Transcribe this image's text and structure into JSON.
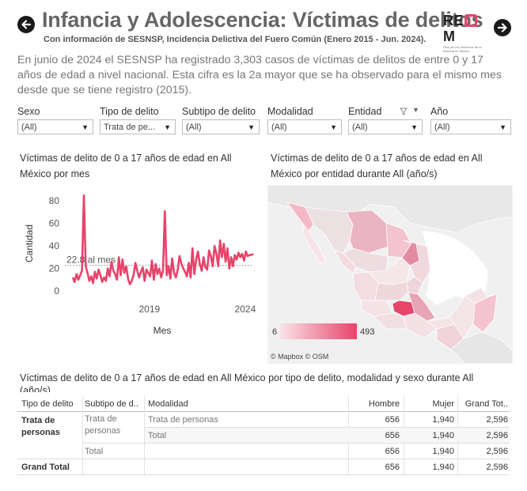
{
  "header": {
    "title": "Infancia y Adolescencia: Víctimas de delitos",
    "subtitle": "Con información de SESNSP, Incidencia Delictiva del Fuero Común (Enero 2015 - Jun. 2024).",
    "logo_main_a": "RE",
    "logo_main_b": "I",
    "logo_main_c": "M",
    "logo_sub": "Red por los Derechos de la Infancia en México",
    "accent": "#e8436a"
  },
  "intro": "En junio de 2024 el SESNSP ha registrado 3,303 casos de víctimas de delitos de entre 0 y 17 años de edad a nivel nacional. Esta cifra es la 2a mayor que se ha observado para el mismo mes desde que se tiene registro (2015).",
  "filters": [
    {
      "label": "Sexo",
      "value": "(All)"
    },
    {
      "label": "Tipo de delito",
      "value": "Trata de pe..."
    },
    {
      "label": "Subtipo de delito",
      "value": "(All)"
    },
    {
      "label": "Modalidad",
      "value": "(All)"
    },
    {
      "label": "Entidad",
      "value": "(All)"
    },
    {
      "label": "Año",
      "value": "(All)"
    }
  ],
  "chart_data": [
    {
      "type": "line",
      "title": "Víctimas de delito de 0 a 17 años de edad en All México por mes",
      "xlabel": "Mes",
      "ylabel": "Cantidad",
      "ylim": [
        0,
        90
      ],
      "yticks": [
        "0",
        "20",
        "40",
        "60",
        "80"
      ],
      "xticks": [
        "2019",
        "2024"
      ],
      "reference_line": {
        "value": 22.8,
        "label": "22.8 al mes"
      },
      "color": "#e8436a",
      "x_start": "2015-01",
      "values": [
        12,
        8,
        15,
        10,
        14,
        18,
        85,
        22,
        16,
        9,
        13,
        7,
        17,
        11,
        19,
        14,
        8,
        12,
        9,
        20,
        13,
        26,
        18,
        15,
        10,
        30,
        14,
        28,
        16,
        22,
        11,
        6,
        9,
        14,
        25,
        18,
        12,
        17,
        21,
        9,
        19,
        16,
        13,
        27,
        10,
        24,
        15,
        20,
        12,
        18,
        71,
        14,
        22,
        11,
        29,
        16,
        12,
        19,
        31,
        24,
        20,
        17,
        13,
        25,
        12,
        38,
        15,
        28,
        35,
        24,
        18,
        30,
        21,
        19,
        36,
        31,
        22,
        40,
        33,
        22,
        45,
        30,
        42,
        26,
        38,
        20,
        30,
        22,
        32,
        28,
        34,
        30,
        33,
        27,
        35,
        31,
        32,
        32,
        33
      ]
    },
    {
      "type": "choropleth",
      "title": "Víctimas de delito de 0 a 17 años de edad en All México por entidad durante All (año/s)",
      "legend_min": "6",
      "legend_max": "493",
      "attribution": "© Mapbox  © OSM",
      "color_low": "#f9e6ea",
      "color_high": "#e8436a"
    },
    {
      "type": "table",
      "title": "Víctimas de delito de 0 a 17 años de edad en All México por tipo de delito, modalidad y sexo durante All (año/s)",
      "columns": [
        "Tipo de delito",
        "Subtipo de d..",
        "Modalidad",
        "Hombre",
        "Mujer",
        "Grand Tot.."
      ],
      "rows": [
        {
          "tipo": "Trata de personas",
          "subtipo": "Trata de personas",
          "modalidad": "Trata de personas",
          "hombre": "656",
          "mujer": "1,940",
          "total": "2,596"
        },
        {
          "tipo": "",
          "subtipo": "",
          "modalidad": "Total",
          "hombre": "656",
          "mujer": "1,940",
          "total": "2,596"
        },
        {
          "tipo": "",
          "subtipo": "Total",
          "modalidad": "",
          "hombre": "656",
          "mujer": "1,940",
          "total": "2,596"
        },
        {
          "tipo": "Grand Total",
          "subtipo": "",
          "modalidad": "",
          "hombre": "656",
          "mujer": "1,940",
          "total": "2,596"
        }
      ]
    }
  ]
}
